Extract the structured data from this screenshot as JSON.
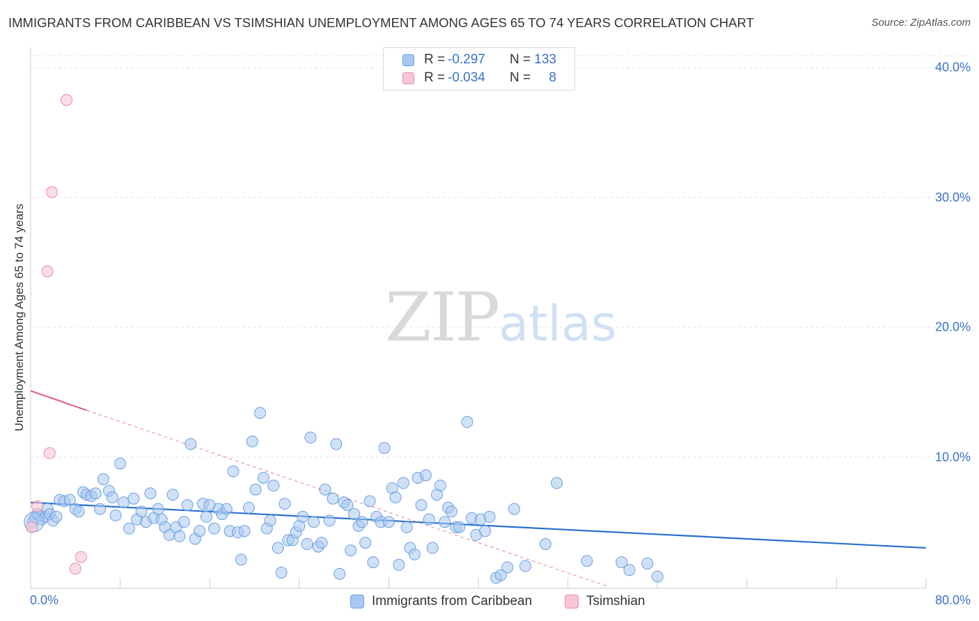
{
  "header": {
    "title": "IMMIGRANTS FROM CARIBBEAN VS TSIMSHIAN UNEMPLOYMENT AMONG AGES 65 TO 74 YEARS CORRELATION CHART",
    "source": "Source: ZipAtlas.com"
  },
  "watermark": {
    "zip": "ZIP",
    "atlas": "atlas"
  },
  "legend": {
    "rows": [
      {
        "r_label": "R =",
        "r_value": "-0.297",
        "n_label": "N =",
        "n_value": "133",
        "color": "#a9c8f0",
        "border": "#6b9fe0"
      },
      {
        "r_label": "R =",
        "r_value": "-0.034",
        "n_label": "N =",
        "n_value": "8",
        "color": "#f8c6d4",
        "border": "#e88aa8"
      }
    ]
  },
  "bottom_legend": [
    {
      "label": "Immigrants from Caribbean",
      "color": "#a9c8f0",
      "border": "#6b9fe0"
    },
    {
      "label": "Tsimshian",
      "color": "#f8c6d4",
      "border": "#e88aa8"
    }
  ],
  "colors": {
    "blue_fill": "#a9c8f0",
    "blue_line": "#2a6fcd",
    "pink_fill": "#f8c6d4",
    "pink_line": "#e0628f",
    "axis_text": "#3a72c6"
  },
  "chart_data": {
    "type": "scatter",
    "title": "IMMIGRANTS FROM CARIBBEAN VS TSIMSHIAN UNEMPLOYMENT AMONG AGES 65 TO 74 YEARS CORRELATION CHART",
    "xlabel": "",
    "ylabel": "Unemployment Among Ages 65 to 74 years",
    "xlim": [
      0,
      80
    ],
    "ylim": [
      0,
      40
    ],
    "x_tick_labels": [
      "0.0%",
      "80.0%"
    ],
    "y_ticks": [
      10,
      20,
      30,
      40
    ],
    "y_tick_labels": [
      "10.0%",
      "20.0%",
      "30.0%",
      "40.0%"
    ],
    "grid": true,
    "series": [
      {
        "name": "Immigrants from Caribbean",
        "trend": {
          "x0": 0,
          "y0": 6.5,
          "x1": 80,
          "y1": 3.0
        },
        "points": [
          [
            0.2,
            5.0
          ],
          [
            0.4,
            5.3
          ],
          [
            0.6,
            5.6
          ],
          [
            0.8,
            5.5
          ],
          [
            1.0,
            5.2
          ],
          [
            1.3,
            5.4
          ],
          [
            1.5,
            6.0
          ],
          [
            1.7,
            5.6
          ],
          [
            2.0,
            5.1
          ],
          [
            2.3,
            5.4
          ],
          [
            2.6,
            6.7
          ],
          [
            3.0,
            6.6
          ],
          [
            3.5,
            6.7
          ],
          [
            4.0,
            6.0
          ],
          [
            4.3,
            5.8
          ],
          [
            4.7,
            7.3
          ],
          [
            5.0,
            7.1
          ],
          [
            5.4,
            7.0
          ],
          [
            5.8,
            7.2
          ],
          [
            6.2,
            6.0
          ],
          [
            6.5,
            8.3
          ],
          [
            7.0,
            7.4
          ],
          [
            7.3,
            6.9
          ],
          [
            7.6,
            5.5
          ],
          [
            8.0,
            9.5
          ],
          [
            8.3,
            6.5
          ],
          [
            8.8,
            4.5
          ],
          [
            9.2,
            6.8
          ],
          [
            9.5,
            5.2
          ],
          [
            9.9,
            5.8
          ],
          [
            10.3,
            5.0
          ],
          [
            10.7,
            7.2
          ],
          [
            11.0,
            5.3
          ],
          [
            11.4,
            6.0
          ],
          [
            11.7,
            5.2
          ],
          [
            12.0,
            4.6
          ],
          [
            12.4,
            4.0
          ],
          [
            12.7,
            7.1
          ],
          [
            13.0,
            4.6
          ],
          [
            13.3,
            3.9
          ],
          [
            13.7,
            5.0
          ],
          [
            14.0,
            6.3
          ],
          [
            14.3,
            11.0
          ],
          [
            14.7,
            3.7
          ],
          [
            15.1,
            4.3
          ],
          [
            15.4,
            6.4
          ],
          [
            15.7,
            5.4
          ],
          [
            16.0,
            6.3
          ],
          [
            16.4,
            4.5
          ],
          [
            16.8,
            6.0
          ],
          [
            17.1,
            5.6
          ],
          [
            17.5,
            6.0
          ],
          [
            17.8,
            4.3
          ],
          [
            18.1,
            8.9
          ],
          [
            18.5,
            4.2
          ],
          [
            18.8,
            2.1
          ],
          [
            19.1,
            4.3
          ],
          [
            19.5,
            6.1
          ],
          [
            19.8,
            11.2
          ],
          [
            20.1,
            7.5
          ],
          [
            20.5,
            13.4
          ],
          [
            20.8,
            8.4
          ],
          [
            21.1,
            4.5
          ],
          [
            21.4,
            5.1
          ],
          [
            21.7,
            7.8
          ],
          [
            22.1,
            3.0
          ],
          [
            22.4,
            1.1
          ],
          [
            22.7,
            6.4
          ],
          [
            23.0,
            3.6
          ],
          [
            23.4,
            3.6
          ],
          [
            23.7,
            4.2
          ],
          [
            24.0,
            4.7
          ],
          [
            24.3,
            5.4
          ],
          [
            24.7,
            3.3
          ],
          [
            25.0,
            11.5
          ],
          [
            25.3,
            5.0
          ],
          [
            25.7,
            3.1
          ],
          [
            26.0,
            3.4
          ],
          [
            26.3,
            7.5
          ],
          [
            26.7,
            5.1
          ],
          [
            27.0,
            6.8
          ],
          [
            27.3,
            11.0
          ],
          [
            27.6,
            1.0
          ],
          [
            28.0,
            6.5
          ],
          [
            28.3,
            6.3
          ],
          [
            28.6,
            2.8
          ],
          [
            28.9,
            5.6
          ],
          [
            29.3,
            4.7
          ],
          [
            29.6,
            5.0
          ],
          [
            29.9,
            3.4
          ],
          [
            30.3,
            6.6
          ],
          [
            30.6,
            1.9
          ],
          [
            30.9,
            5.4
          ],
          [
            31.3,
            5.0
          ],
          [
            31.6,
            10.7
          ],
          [
            32.0,
            5.0
          ],
          [
            32.3,
            7.6
          ],
          [
            32.6,
            6.9
          ],
          [
            32.9,
            1.7
          ],
          [
            33.3,
            8.0
          ],
          [
            33.6,
            4.6
          ],
          [
            33.9,
            3.0
          ],
          [
            34.3,
            2.5
          ],
          [
            34.6,
            8.4
          ],
          [
            34.9,
            6.3
          ],
          [
            35.3,
            8.6
          ],
          [
            35.6,
            5.2
          ],
          [
            35.9,
            3.0
          ],
          [
            36.3,
            7.1
          ],
          [
            36.6,
            7.8
          ],
          [
            37.0,
            5.0
          ],
          [
            37.3,
            6.1
          ],
          [
            37.6,
            5.8
          ],
          [
            38.0,
            4.6
          ],
          [
            38.3,
            4.6
          ],
          [
            39.0,
            12.7
          ],
          [
            39.4,
            5.3
          ],
          [
            39.8,
            4.0
          ],
          [
            40.2,
            5.2
          ],
          [
            40.6,
            4.3
          ],
          [
            41.0,
            5.4
          ],
          [
            41.6,
            0.7
          ],
          [
            42.0,
            0.9
          ],
          [
            42.6,
            1.5
          ],
          [
            43.2,
            6.0
          ],
          [
            44.2,
            1.6
          ],
          [
            46.0,
            3.3
          ],
          [
            47.0,
            8.0
          ],
          [
            49.7,
            2.0
          ],
          [
            52.8,
            1.9
          ],
          [
            53.5,
            1.3
          ],
          [
            55.1,
            1.8
          ],
          [
            56.0,
            0.8
          ]
        ]
      },
      {
        "name": "Tsimshian",
        "trend": {
          "x0": 0,
          "y0": 15.1,
          "x1": 5,
          "y1": 13.6,
          "dash_to": [
            51.7,
            0.0
          ]
        },
        "points": [
          [
            0.1,
            4.6
          ],
          [
            0.6,
            6.2
          ],
          [
            1.5,
            24.3
          ],
          [
            1.7,
            10.3
          ],
          [
            1.9,
            30.4
          ],
          [
            3.2,
            37.5
          ],
          [
            4.0,
            1.4
          ],
          [
            4.5,
            2.3
          ]
        ]
      }
    ]
  }
}
